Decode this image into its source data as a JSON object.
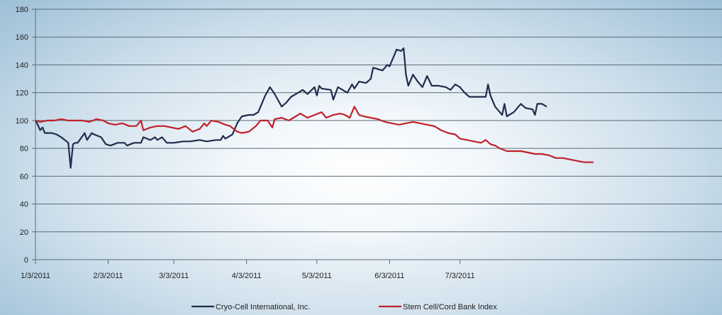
{
  "chart_data": {
    "type": "line",
    "title": "",
    "xlabel": "",
    "ylabel": "",
    "ylim": [
      0,
      180
    ],
    "yticks": [
      0,
      20,
      40,
      60,
      80,
      100,
      120,
      140,
      160,
      180
    ],
    "xlim": [
      "1/3/2011",
      "8/3/2011"
    ],
    "xticks": [
      "1/3/2011",
      "2/3/2011",
      "3/3/2011",
      "4/3/2011",
      "5/3/2011",
      "6/3/2011",
      "7/3/2011"
    ],
    "grid": true,
    "legend_position": "bottom",
    "series": [
      {
        "name": "Cryo-Cell International, Inc.",
        "color": "#1f2d4d",
        "points": [
          [
            "1/3/2011",
            100
          ],
          [
            "1/4/2011",
            97
          ],
          [
            "1/5/2011",
            93
          ],
          [
            "1/6/2011",
            95
          ],
          [
            "1/7/2011",
            91
          ],
          [
            "1/10/2011",
            91
          ],
          [
            "1/12/2011",
            90
          ],
          [
            "1/14/2011",
            88
          ],
          [
            "1/17/2011",
            84
          ],
          [
            "1/18/2011",
            66
          ],
          [
            "1/19/2011",
            83
          ],
          [
            "1/20/2011",
            84
          ],
          [
            "1/21/2011",
            84
          ],
          [
            "1/24/2011",
            91
          ],
          [
            "1/25/2011",
            86
          ],
          [
            "1/27/2011",
            91
          ],
          [
            "1/28/2011",
            90
          ],
          [
            "1/31/2011",
            88
          ],
          [
            "2/2/2011",
            83
          ],
          [
            "2/4/2011",
            82
          ],
          [
            "2/7/2011",
            84
          ],
          [
            "2/10/2011",
            84
          ],
          [
            "2/11/2011",
            82
          ],
          [
            "2/14/2011",
            84
          ],
          [
            "2/17/2011",
            84
          ],
          [
            "2/18/2011",
            88
          ],
          [
            "2/21/2011",
            86
          ],
          [
            "2/23/2011",
            88
          ],
          [
            "2/24/2011",
            86
          ],
          [
            "2/26/2011",
            88
          ],
          [
            "2/28/2011",
            84
          ],
          [
            "3/3/2011",
            84
          ],
          [
            "3/7/2011",
            85
          ],
          [
            "3/10/2011",
            85
          ],
          [
            "3/14/2011",
            86
          ],
          [
            "3/17/2011",
            85
          ],
          [
            "3/21/2011",
            86
          ],
          [
            "3/23/2011",
            86
          ],
          [
            "3/24/2011",
            89
          ],
          [
            "3/25/2011",
            87
          ],
          [
            "3/28/2011",
            90
          ],
          [
            "3/30/2011",
            98
          ],
          [
            "4/1/2011",
            103
          ],
          [
            "4/4/2011",
            104
          ],
          [
            "4/6/2011",
            104
          ],
          [
            "4/8/2011",
            106
          ],
          [
            "4/11/2011",
            118
          ],
          [
            "4/13/2011",
            124
          ],
          [
            "4/15/2011",
            119
          ],
          [
            "4/18/2011",
            110
          ],
          [
            "4/20/2011",
            113
          ],
          [
            "4/22/2011",
            117
          ],
          [
            "4/25/2011",
            120
          ],
          [
            "4/27/2011",
            122
          ],
          [
            "4/29/2011",
            119
          ],
          [
            "5/2/2011",
            124
          ],
          [
            "5/3/2011",
            118
          ],
          [
            "5/4/2011",
            125
          ],
          [
            "5/5/2011",
            123
          ],
          [
            "5/9/2011",
            122
          ],
          [
            "5/10/2011",
            115
          ],
          [
            "5/12/2011",
            124
          ],
          [
            "5/16/2011",
            120
          ],
          [
            "5/18/2011",
            126
          ],
          [
            "5/19/2011",
            123
          ],
          [
            "5/21/2011",
            128
          ],
          [
            "5/24/2011",
            127
          ],
          [
            "5/26/2011",
            130
          ],
          [
            "5/27/2011",
            138
          ],
          [
            "5/31/2011",
            136
          ],
          [
            "6/2/2011",
            140
          ],
          [
            "6/3/2011",
            139
          ],
          [
            "6/6/2011",
            151
          ],
          [
            "6/8/2011",
            150
          ],
          [
            "6/9/2011",
            152
          ],
          [
            "6/10/2011",
            133
          ],
          [
            "6/11/2011",
            125
          ],
          [
            "6/13/2011",
            133
          ],
          [
            "6/15/2011",
            128
          ],
          [
            "6/17/2011",
            124
          ],
          [
            "6/19/2011",
            132
          ],
          [
            "6/21/2011",
            125
          ],
          [
            "6/24/2011",
            125
          ],
          [
            "6/27/2011",
            124
          ],
          [
            "6/29/2011",
            122
          ],
          [
            "7/1/2011",
            126
          ],
          [
            "7/3/2011",
            124
          ],
          [
            "7/5/2011",
            120
          ],
          [
            "7/7/2011",
            117
          ],
          [
            "7/9/2011",
            117
          ],
          [
            "7/12/2011",
            117
          ],
          [
            "7/14/2011",
            117
          ],
          [
            "7/15/2011",
            126
          ],
          [
            "7/16/2011",
            118
          ],
          [
            "7/18/2011",
            110
          ],
          [
            "7/20/2011",
            106
          ],
          [
            "7/21/2011",
            104
          ],
          [
            "7/22/2011",
            112
          ],
          [
            "7/23/2011",
            103
          ],
          [
            "7/26/2011",
            106
          ],
          [
            "7/28/2011",
            110
          ],
          [
            "7/29/2011",
            112
          ],
          [
            "7/31/2011",
            109
          ],
          [
            "8/3/2011",
            108
          ],
          [
            "8/4/2011",
            104
          ],
          [
            "8/5/2011",
            112
          ],
          [
            "8/7/2011",
            112
          ],
          [
            "8/9/2011",
            110
          ]
        ]
      },
      {
        "name": "Stem Cell/Cord Bank Index",
        "color": "#c0202a",
        "points": [
          [
            "1/3/2011",
            100
          ],
          [
            "1/5/2011",
            99
          ],
          [
            "1/8/2011",
            100
          ],
          [
            "1/11/2011",
            100
          ],
          [
            "1/14/2011",
            101
          ],
          [
            "1/17/2011",
            100
          ],
          [
            "1/20/2011",
            100
          ],
          [
            "1/23/2011",
            100
          ],
          [
            "1/26/2011",
            99
          ],
          [
            "1/29/2011",
            101
          ],
          [
            "2/1/2011",
            100
          ],
          [
            "2/3/2011",
            98
          ],
          [
            "2/6/2011",
            97
          ],
          [
            "2/9/2011",
            98
          ],
          [
            "2/12/2011",
            96
          ],
          [
            "2/15/2011",
            96
          ],
          [
            "2/17/2011",
            100
          ],
          [
            "2/18/2011",
            93
          ],
          [
            "2/21/2011",
            95
          ],
          [
            "2/24/2011",
            96
          ],
          [
            "2/27/2011",
            96
          ],
          [
            "3/2/2011",
            95
          ],
          [
            "3/5/2011",
            94
          ],
          [
            "3/8/2011",
            96
          ],
          [
            "3/11/2011",
            92
          ],
          [
            "3/14/2011",
            94
          ],
          [
            "3/16/2011",
            98
          ],
          [
            "3/17/2011",
            96
          ],
          [
            "3/19/2011",
            100
          ],
          [
            "3/22/2011",
            99
          ],
          [
            "3/25/2011",
            97
          ],
          [
            "3/27/2011",
            96
          ],
          [
            "3/30/2011",
            92
          ],
          [
            "4/1/2011",
            91
          ],
          [
            "4/4/2011",
            92
          ],
          [
            "4/7/2011",
            96
          ],
          [
            "4/9/2011",
            100
          ],
          [
            "4/12/2011",
            100
          ],
          [
            "4/14/2011",
            95
          ],
          [
            "4/15/2011",
            101
          ],
          [
            "4/18/2011",
            102
          ],
          [
            "4/21/2011",
            100
          ],
          [
            "4/24/2011",
            103
          ],
          [
            "4/26/2011",
            105
          ],
          [
            "4/29/2011",
            102
          ],
          [
            "5/2/2011",
            104
          ],
          [
            "5/5/2011",
            106
          ],
          [
            "5/7/2011",
            102
          ],
          [
            "5/10/2011",
            104
          ],
          [
            "5/13/2011",
            105
          ],
          [
            "5/15/2011",
            104
          ],
          [
            "5/17/2011",
            102
          ],
          [
            "5/19/2011",
            110
          ],
          [
            "5/21/2011",
            104
          ],
          [
            "5/23/2011",
            103
          ],
          [
            "5/26/2011",
            102
          ],
          [
            "5/29/2011",
            101
          ],
          [
            "6/1/2011",
            99
          ],
          [
            "6/4/2011",
            98
          ],
          [
            "6/7/2011",
            97
          ],
          [
            "6/10/2011",
            98
          ],
          [
            "6/13/2011",
            99
          ],
          [
            "6/16/2011",
            98
          ],
          [
            "6/19/2011",
            97
          ],
          [
            "6/22/2011",
            96
          ],
          [
            "6/25/2011",
            93
          ],
          [
            "6/28/2011",
            91
          ],
          [
            "7/1/2011",
            90
          ],
          [
            "7/3/2011",
            87
          ],
          [
            "7/6/2011",
            86
          ],
          [
            "7/9/2011",
            85
          ],
          [
            "7/12/2011",
            84
          ],
          [
            "7/14/2011",
            86
          ],
          [
            "7/16/2011",
            83
          ],
          [
            "7/18/2011",
            82
          ],
          [
            "7/20/2011",
            80
          ],
          [
            "7/23/2011",
            78
          ],
          [
            "7/26/2011",
            78
          ],
          [
            "7/29/2011",
            78
          ],
          [
            "8/1/2011",
            77
          ],
          [
            "8/4/2011",
            76
          ],
          [
            "8/7/2011",
            76
          ],
          [
            "8/10/2011",
            75
          ],
          [
            "8/13/2011",
            73
          ],
          [
            "8/16/2011",
            73
          ],
          [
            "8/19/2011",
            72
          ],
          [
            "8/22/2011",
            71
          ],
          [
            "8/25/2011",
            70
          ],
          [
            "8/27/2011",
            70
          ],
          [
            "8/29/2011",
            70
          ]
        ]
      }
    ]
  }
}
